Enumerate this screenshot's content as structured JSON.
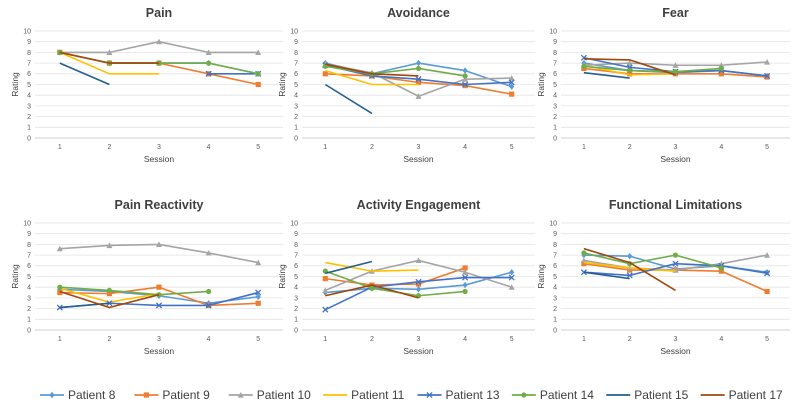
{
  "figure": {
    "legend": [
      {
        "name": "Patient 8",
        "color": "#5b9bd5",
        "marker": "diamond"
      },
      {
        "name": "Patient 9",
        "color": "#ed7d31",
        "marker": "square"
      },
      {
        "name": "Patient 10",
        "color": "#a5a5a5",
        "marker": "triangle"
      },
      {
        "name": "Patient 11",
        "color": "#ffc000",
        "marker": "none"
      },
      {
        "name": "Patient 13",
        "color": "#4472c4",
        "marker": "x"
      },
      {
        "name": "Patient 14",
        "color": "#70ad47",
        "marker": "circle"
      },
      {
        "name": "Patient 15",
        "color": "#255e91",
        "marker": "none"
      },
      {
        "name": "Patient 17",
        "color": "#9e480e",
        "marker": "none"
      }
    ]
  },
  "chart_data": [
    {
      "type": "line",
      "title": "Pain",
      "xlabel": "Session",
      "ylabel": "Rating",
      "categories": [
        "1",
        "2",
        "3",
        "4",
        "5"
      ],
      "ylim": [
        0,
        10
      ],
      "series": [
        {
          "name": "Patient 8",
          "values": [
            8,
            7,
            7,
            7,
            6
          ]
        },
        {
          "name": "Patient 9",
          "values": [
            8,
            7,
            7,
            6,
            5
          ]
        },
        {
          "name": "Patient 10",
          "values": [
            8,
            8,
            9,
            8,
            8
          ]
        },
        {
          "name": "Patient 11",
          "values": [
            8,
            6,
            6,
            null,
            null
          ]
        },
        {
          "name": "Patient 13",
          "values": [
            null,
            null,
            null,
            6,
            6
          ]
        },
        {
          "name": "Patient 14",
          "values": [
            8,
            7,
            7,
            7,
            6
          ]
        },
        {
          "name": "Patient 15",
          "values": [
            7,
            5,
            null,
            null,
            null
          ]
        },
        {
          "name": "Patient 17",
          "values": [
            8,
            7,
            7,
            null,
            null
          ]
        }
      ]
    },
    {
      "type": "line",
      "title": "Avoidance",
      "xlabel": "Session",
      "ylabel": "Rating",
      "categories": [
        "1",
        "2",
        "3",
        "4",
        "5"
      ],
      "ylim": [
        0,
        10
      ],
      "series": [
        {
          "name": "Patient 8",
          "values": [
            7.0,
            6.0,
            7.0,
            6.3,
            4.8
          ]
        },
        {
          "name": "Patient 9",
          "values": [
            6.0,
            5.8,
            5.2,
            4.9,
            4.1
          ]
        },
        {
          "name": "Patient 10",
          "values": [
            6.9,
            6.1,
            3.9,
            5.5,
            5.6
          ]
        },
        {
          "name": "Patient 11",
          "values": [
            6.3,
            5.0,
            5.0,
            null,
            null
          ]
        },
        {
          "name": "Patient 13",
          "values": [
            6.8,
            5.8,
            5.5,
            5.0,
            5.2
          ]
        },
        {
          "name": "Patient 14",
          "values": [
            6.7,
            6.0,
            6.5,
            5.8,
            null
          ]
        },
        {
          "name": "Patient 15",
          "values": [
            5.0,
            2.3,
            null,
            null,
            null
          ]
        },
        {
          "name": "Patient 17",
          "values": [
            6.9,
            6.0,
            5.8,
            null,
            null
          ]
        }
      ]
    },
    {
      "type": "line",
      "title": "Fear",
      "xlabel": "Session",
      "ylabel": "Rating",
      "categories": [
        "1",
        "2",
        "3",
        "4",
        "5"
      ],
      "ylim": [
        0,
        10
      ],
      "series": [
        {
          "name": "Patient 8",
          "values": [
            7.0,
            6.3,
            6.1,
            6.3,
            5.8
          ]
        },
        {
          "name": "Patient 9",
          "values": [
            6.5,
            6.0,
            6.0,
            6.0,
            5.7
          ]
        },
        {
          "name": "Patient 10",
          "values": [
            6.8,
            7.0,
            6.8,
            6.8,
            7.1
          ]
        },
        {
          "name": "Patient 11",
          "values": [
            6.8,
            5.9,
            6.0,
            null,
            null
          ]
        },
        {
          "name": "Patient 13",
          "values": [
            7.5,
            6.6,
            6.2,
            6.3,
            5.8
          ]
        },
        {
          "name": "Patient 14",
          "values": [
            6.7,
            6.3,
            6.2,
            6.5,
            null
          ]
        },
        {
          "name": "Patient 15",
          "values": [
            6.1,
            5.6,
            null,
            null,
            null
          ]
        },
        {
          "name": "Patient 17",
          "values": [
            7.4,
            7.3,
            5.9,
            null,
            null
          ]
        }
      ]
    },
    {
      "type": "line",
      "title": "Pain Reactivity",
      "xlabel": "Session",
      "ylabel": "Rating",
      "categories": [
        "1",
        "2",
        "3",
        "4",
        "5"
      ],
      "ylim": [
        0,
        10
      ],
      "series": [
        {
          "name": "Patient 8",
          "values": [
            3.8,
            3.6,
            3.2,
            2.5,
            3.1
          ]
        },
        {
          "name": "Patient 9",
          "values": [
            3.5,
            3.4,
            4.0,
            2.3,
            2.5
          ]
        },
        {
          "name": "Patient 10",
          "values": [
            7.6,
            7.9,
            8.0,
            7.2,
            6.3
          ]
        },
        {
          "name": "Patient 11",
          "values": [
            3.9,
            2.6,
            3.4,
            null,
            null
          ]
        },
        {
          "name": "Patient 13",
          "values": [
            2.1,
            2.5,
            2.3,
            2.3,
            3.5
          ]
        },
        {
          "name": "Patient 14",
          "values": [
            4.0,
            3.7,
            3.3,
            3.6,
            null
          ]
        },
        {
          "name": "Patient 15",
          "values": [
            2.1,
            2.5,
            null,
            null,
            null
          ]
        },
        {
          "name": "Patient 17",
          "values": [
            3.6,
            2.1,
            3.3,
            null,
            null
          ]
        }
      ]
    },
    {
      "type": "line",
      "title": "Activity Engagement",
      "xlabel": "Session",
      "ylabel": "Rating",
      "categories": [
        "1",
        "2",
        "3",
        "4",
        "5"
      ],
      "ylim": [
        0,
        10
      ],
      "series": [
        {
          "name": "Patient 8",
          "values": [
            3.5,
            3.9,
            3.8,
            4.2,
            5.4
          ]
        },
        {
          "name": "Patient 9",
          "values": [
            4.8,
            4.2,
            4.3,
            5.8,
            null
          ]
        },
        {
          "name": "Patient 10",
          "values": [
            3.7,
            5.5,
            6.5,
            5.4,
            4.0
          ]
        },
        {
          "name": "Patient 11",
          "values": [
            6.3,
            5.5,
            5.6,
            null,
            null
          ]
        },
        {
          "name": "Patient 13",
          "values": [
            1.9,
            4.0,
            4.5,
            4.9,
            4.9
          ]
        },
        {
          "name": "Patient 14",
          "values": [
            5.5,
            3.9,
            3.2,
            3.6,
            null
          ]
        },
        {
          "name": "Patient 15",
          "values": [
            5.3,
            6.4,
            null,
            null,
            null
          ]
        },
        {
          "name": "Patient 17",
          "values": [
            3.2,
            4.2,
            3.0,
            null,
            null
          ]
        }
      ]
    },
    {
      "type": "line",
      "title": "Functional Limitations",
      "xlabel": "Session",
      "ylabel": "Rating",
      "categories": [
        "1",
        "2",
        "3",
        "4",
        "5"
      ],
      "ylim": [
        0,
        10
      ],
      "series": [
        {
          "name": "Patient 8",
          "values": [
            7.0,
            6.9,
            5.7,
            6.0,
            5.4
          ]
        },
        {
          "name": "Patient 9",
          "values": [
            6.2,
            5.6,
            5.6,
            5.5,
            3.6
          ]
        },
        {
          "name": "Patient 10",
          "values": [
            6.5,
            5.8,
            5.6,
            6.2,
            7.0
          ]
        },
        {
          "name": "Patient 11",
          "values": [
            6.3,
            5.8,
            5.5,
            null,
            null
          ]
        },
        {
          "name": "Patient 13",
          "values": [
            5.4,
            5.1,
            6.2,
            6.0,
            5.3
          ]
        },
        {
          "name": "Patient 14",
          "values": [
            7.2,
            6.2,
            7.0,
            5.8,
            null
          ]
        },
        {
          "name": "Patient 15",
          "values": [
            5.4,
            4.8,
            null,
            null,
            null
          ]
        },
        {
          "name": "Patient 17",
          "values": [
            7.6,
            6.3,
            3.7,
            null,
            null
          ]
        }
      ]
    }
  ]
}
